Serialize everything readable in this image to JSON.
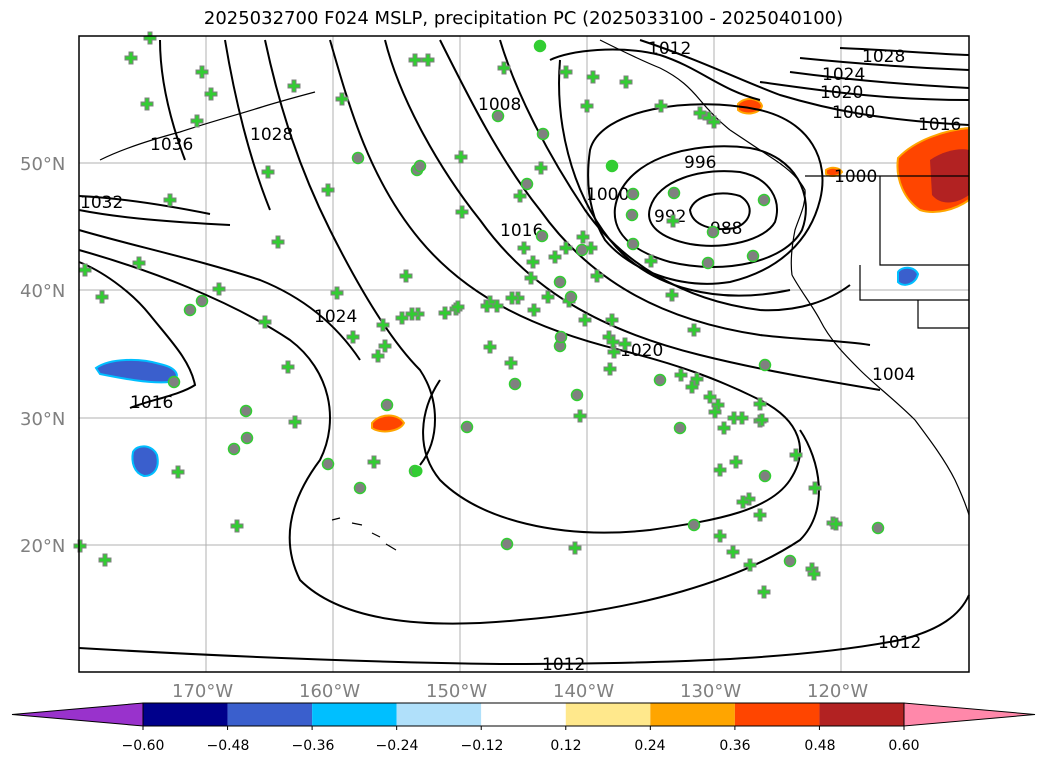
{
  "title": "2025032700 F024 MSLP, precipitation PC (2025033100 - 2025040100)",
  "axes": {
    "lat_labels": [
      "50°N",
      "40°N",
      "30°N",
      "20°N"
    ],
    "lon_labels": [
      "170°W",
      "160°W",
      "150°W",
      "140°W",
      "130°W",
      "120°W"
    ]
  },
  "isobar_labels": [
    "1012",
    "1028",
    "1024",
    "1020",
    "1008",
    "1016",
    "1036",
    "1028",
    "1032",
    "996",
    "1000",
    "1000",
    "992",
    "988",
    "1016",
    "1024",
    "1020",
    "1016",
    "1012",
    "1012",
    "1000",
    "1004"
  ],
  "colorbar": {
    "ticks": [
      "−0.60",
      "−0.48",
      "−0.36",
      "−0.24",
      "−0.12",
      "0.12",
      "0.24",
      "0.36",
      "0.48",
      "0.60"
    ],
    "colors": [
      "#9932cc",
      "#00008b",
      "#3a5fcd",
      "#00bfff",
      "#b0e0fa",
      "#ffffff",
      "#ffe88c",
      "#ffa500",
      "#ff4500",
      "#b22222",
      "#ff88aa"
    ]
  },
  "colors": {
    "contour": "#000000",
    "grid": "#b0b0b0",
    "marker_fill": "#32cd32",
    "marker_edge": "#808080"
  }
}
